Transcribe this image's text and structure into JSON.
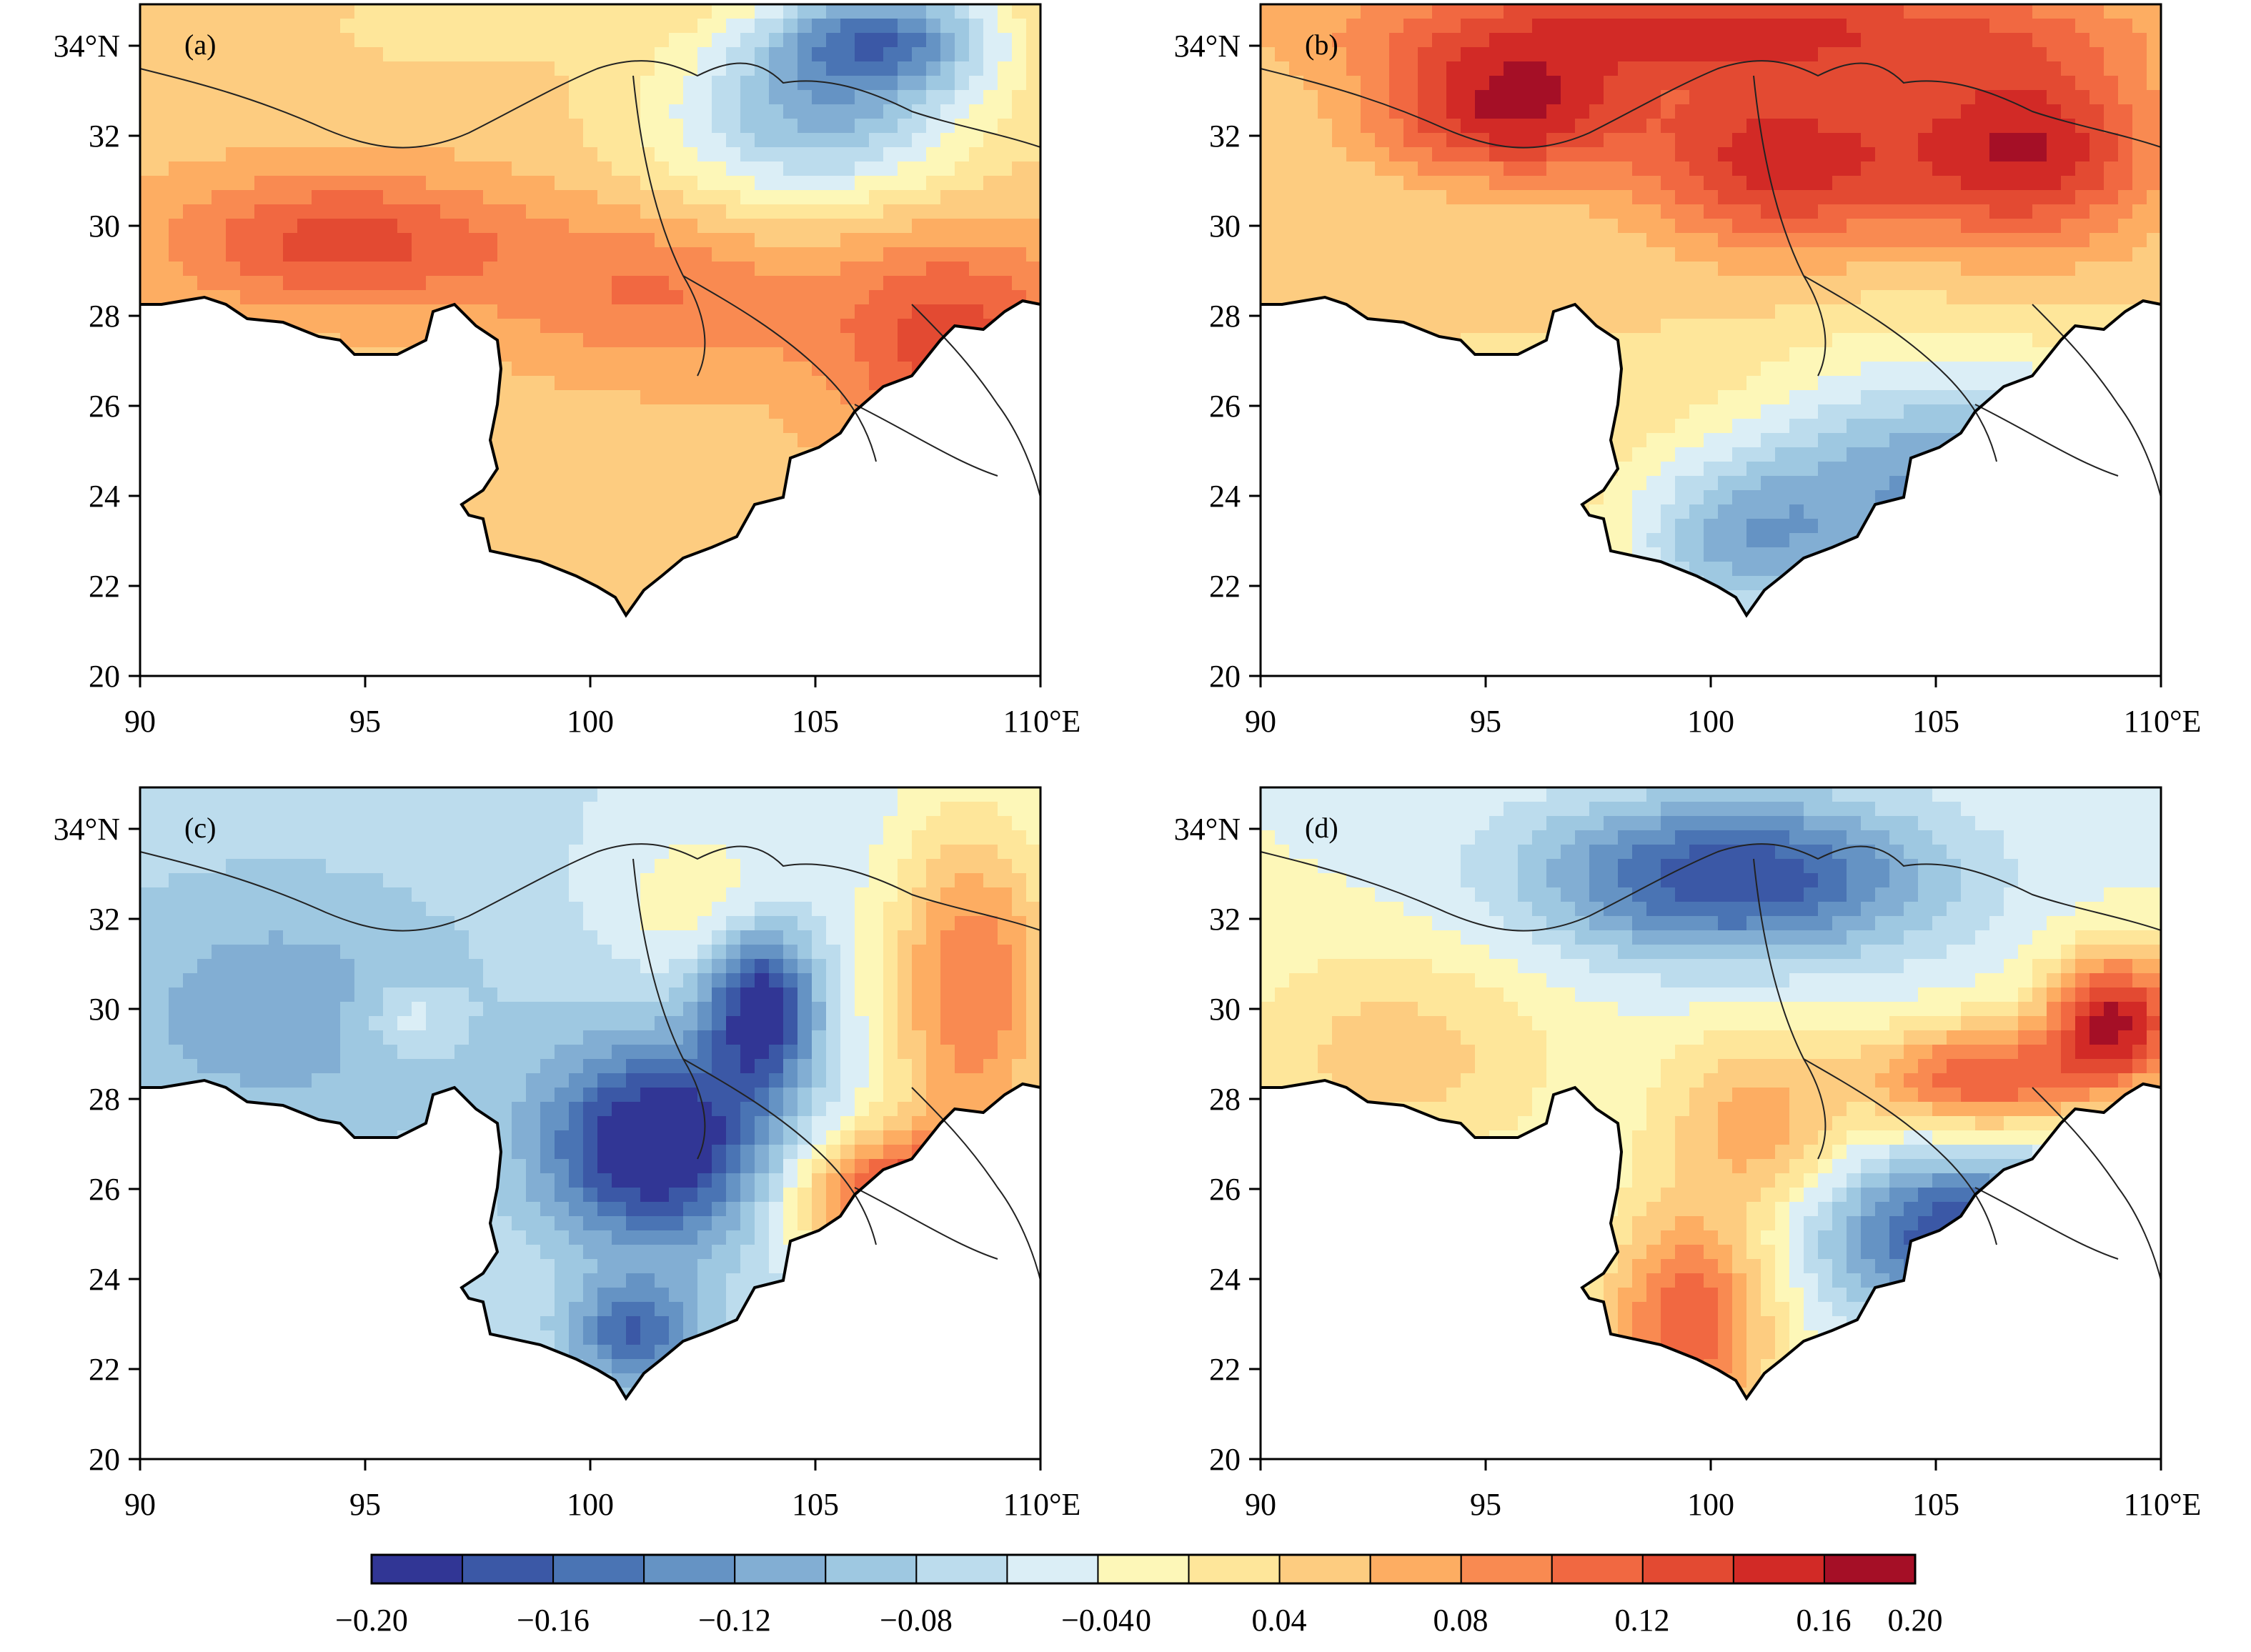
{
  "figure": {
    "panels": [
      {
        "id": "a",
        "label": "(a)",
        "x_ticks": [
          "90",
          "95",
          "100",
          "105",
          "110°E"
        ],
        "y_ticks": [
          "20",
          "22",
          "24",
          "26",
          "28",
          "30",
          "32",
          "34°N"
        ],
        "blobs": [
          {
            "lon": 94.5,
            "lat": 29.7,
            "value": 0.13,
            "rlon": 4.0,
            "rlat": 1.5
          },
          {
            "lon": 108.0,
            "lat": 27.5,
            "value": 0.13,
            "rlon": 2.8,
            "rlat": 2.5
          },
          {
            "lon": 101.5,
            "lat": 28.5,
            "value": 0.1,
            "rlon": 3.5,
            "rlat": 1.8
          },
          {
            "lon": 105.0,
            "lat": 32.5,
            "value": -0.06,
            "rlon": 3.5,
            "rlat": 2.0
          },
          {
            "lon": 106.5,
            "lat": 34.3,
            "value": -0.08,
            "rlon": 2.5,
            "rlat": 1.2
          },
          {
            "lon": 97.0,
            "lat": 34.5,
            "value": 0.03,
            "rlon": 3.0,
            "rlat": 1.0
          }
        ]
      },
      {
        "id": "b",
        "label": "(b)",
        "x_ticks": [
          "90",
          "95",
          "100",
          "105",
          "110°E"
        ],
        "y_ticks": [
          "20",
          "22",
          "24",
          "26",
          "28",
          "30",
          "32",
          "34°N"
        ],
        "blobs": [
          {
            "lon": 95.5,
            "lat": 32.6,
            "value": 0.16,
            "rlon": 3.0,
            "rlat": 1.5
          },
          {
            "lon": 101.5,
            "lat": 31.5,
            "value": 0.15,
            "rlon": 3.0,
            "rlat": 2.0
          },
          {
            "lon": 107.0,
            "lat": 31.8,
            "value": 0.16,
            "rlon": 3.0,
            "rlat": 2.2
          },
          {
            "lon": 100.0,
            "lat": 34.5,
            "value": 0.14,
            "rlon": 8.0,
            "rlat": 1.2
          },
          {
            "lon": 104.5,
            "lat": 24.2,
            "value": -0.07,
            "rlon": 3.5,
            "rlat": 2.8
          },
          {
            "lon": 108.5,
            "lat": 23.5,
            "value": -0.09,
            "rlon": 2.5,
            "rlat": 2.5
          },
          {
            "lon": 100.5,
            "lat": 23.0,
            "value": -0.05,
            "rlon": 2.5,
            "rlat": 2.0
          }
        ]
      },
      {
        "id": "c",
        "label": "(c)",
        "x_ticks": [
          "90",
          "95",
          "100",
          "105",
          "110°E"
        ],
        "y_ticks": [
          "20",
          "22",
          "24",
          "26",
          "28",
          "30",
          "32",
          "34°N"
        ],
        "blobs": [
          {
            "lon": 101.5,
            "lat": 27.0,
            "value": -0.18,
            "rlon": 2.5,
            "rlat": 2.2
          },
          {
            "lon": 103.8,
            "lat": 30.1,
            "value": -0.16,
            "rlon": 1.2,
            "rlat": 1.8
          },
          {
            "lon": 101.0,
            "lat": 22.8,
            "value": -0.12,
            "rlon": 1.5,
            "rlat": 1.2
          },
          {
            "lon": 108.0,
            "lat": 22.0,
            "value": -0.14,
            "rlon": 2.5,
            "rlat": 1.5
          },
          {
            "lon": 93.0,
            "lat": 30.0,
            "value": -0.07,
            "rlon": 5.0,
            "rlat": 3.5
          },
          {
            "lon": 107.0,
            "lat": 25.8,
            "value": 0.13,
            "rlon": 2.5,
            "rlat": 1.5
          },
          {
            "lon": 108.5,
            "lat": 30.5,
            "value": 0.1,
            "rlon": 2.0,
            "rlat": 4.0
          },
          {
            "lon": 102.5,
            "lat": 32.5,
            "value": 0.02,
            "rlon": 2.0,
            "rlat": 1.5
          },
          {
            "lon": 96.0,
            "lat": 29.8,
            "value": 0.02,
            "rlon": 1.0,
            "rlat": 0.8
          }
        ]
      },
      {
        "id": "d",
        "label": "(d)",
        "x_ticks": [
          "90",
          "95",
          "100",
          "105",
          "110°E"
        ],
        "y_ticks": [
          "20",
          "22",
          "24",
          "26",
          "28",
          "30",
          "32",
          "34°N"
        ],
        "blobs": [
          {
            "lon": 100.5,
            "lat": 33.0,
            "value": -0.14,
            "rlon": 4.5,
            "rlat": 1.8
          },
          {
            "lon": 105.5,
            "lat": 25.0,
            "value": -0.14,
            "rlon": 3.0,
            "rlat": 1.8
          },
          {
            "lon": 109.0,
            "lat": 29.8,
            "value": 0.16,
            "rlon": 1.5,
            "rlat": 1.5
          },
          {
            "lon": 106.0,
            "lat": 28.5,
            "value": 0.12,
            "rlon": 2.5,
            "rlat": 1.2
          },
          {
            "lon": 99.5,
            "lat": 23.0,
            "value": 0.12,
            "rlon": 1.8,
            "rlat": 2.5
          },
          {
            "lon": 93.0,
            "lat": 29.0,
            "value": 0.05,
            "rlon": 3.5,
            "rlat": 2.5
          },
          {
            "lon": 101.0,
            "lat": 27.5,
            "value": 0.07,
            "rlon": 2.0,
            "rlat": 2.0
          }
        ]
      }
    ]
  },
  "colorbar": {
    "levels": [
      -0.2,
      -0.18,
      -0.16,
      -0.14,
      -0.12,
      -0.1,
      -0.08,
      -0.06,
      -0.04,
      -0.02,
      0,
      0.02,
      0.04,
      0.06,
      0.08,
      0.1,
      0.12,
      0.14,
      0.16,
      0.18,
      0.2
    ],
    "colors": [
      "#313695",
      "#3b58a6",
      "#4a74b4",
      "#6593c4",
      "#82aed3",
      "#9ec8e1",
      "#bcdced",
      "#dbeef6",
      "#fdf7b8",
      "#fee69a",
      "#fdcc80",
      "#fdad62",
      "#f98a51",
      "#f16841",
      "#e34a32",
      "#d22a26",
      "#a50f26"
    ],
    "labels": [
      "−0.20",
      "−0.16",
      "−0.12",
      "−0.08",
      "−0.04",
      "0",
      "0.04",
      "0.08",
      "0.12",
      "0.16",
      "0.20"
    ]
  }
}
